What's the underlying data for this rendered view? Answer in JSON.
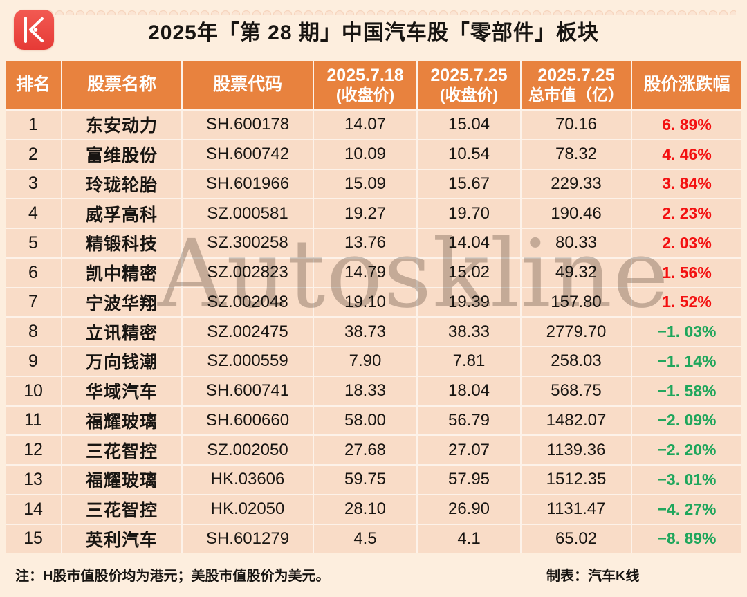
{
  "page": {
    "title": "2025年「第 28 期」中国汽车股「零部件」板块",
    "watermark": "Autoskline"
  },
  "colors": {
    "page_bg": "#fdeede",
    "header_bg": "#e8823e",
    "row_bg": "#f9dcc7",
    "grid_line": "#fdf2e9",
    "up_red": "#f31111",
    "down_green": "#1fa65c",
    "logo_red": "#ee4540"
  },
  "logo": {
    "name": "k-line-logo"
  },
  "table": {
    "columns": [
      {
        "label": "排名"
      },
      {
        "label": "股票名称"
      },
      {
        "label": "股票代码"
      },
      {
        "line1": "2025.7.18",
        "line2": "(收盘价)"
      },
      {
        "line1": "2025.7.25",
        "line2": "(收盘价)"
      },
      {
        "line1": "2025.7.25",
        "line2": "总市值（亿）"
      },
      {
        "label": "股价涨跌幅"
      }
    ],
    "rows": [
      {
        "rank": "1",
        "name": "东安动力",
        "code": "SH.600178",
        "close_0718": "14.07",
        "close_0725": "15.04",
        "market_cap": "70.16",
        "change": "6. 89%",
        "direction": "up"
      },
      {
        "rank": "2",
        "name": "富维股份",
        "code": "SH.600742",
        "close_0718": "10.09",
        "close_0725": "10.54",
        "market_cap": "78.32",
        "change": "4. 46%",
        "direction": "up"
      },
      {
        "rank": "3",
        "name": "玲珑轮胎",
        "code": "SH.601966",
        "close_0718": "15.09",
        "close_0725": "15.67",
        "market_cap": "229.33",
        "change": "3. 84%",
        "direction": "up"
      },
      {
        "rank": "4",
        "name": "威孚高科",
        "code": "SZ.000581",
        "close_0718": "19.27",
        "close_0725": "19.70",
        "market_cap": "190.46",
        "change": "2. 23%",
        "direction": "up"
      },
      {
        "rank": "5",
        "name": "精锻科技",
        "code": "SZ.300258",
        "close_0718": "13.76",
        "close_0725": "14.04",
        "market_cap": "80.33",
        "change": "2. 03%",
        "direction": "up"
      },
      {
        "rank": "6",
        "name": "凯中精密",
        "code": "SZ.002823",
        "close_0718": "14.79",
        "close_0725": "15.02",
        "market_cap": "49.32",
        "change": "1. 56%",
        "direction": "up"
      },
      {
        "rank": "7",
        "name": "宁波华翔",
        "code": "SZ.002048",
        "close_0718": "19.10",
        "close_0725": "19.39",
        "market_cap": "157.80",
        "change": "1. 52%",
        "direction": "up"
      },
      {
        "rank": "8",
        "name": "立讯精密",
        "code": "SZ.002475",
        "close_0718": "38.73",
        "close_0725": "38.33",
        "market_cap": "2779.70",
        "change": "−1. 03%",
        "direction": "down"
      },
      {
        "rank": "9",
        "name": "万向钱潮",
        "code": "SZ.000559",
        "close_0718": "7.90",
        "close_0725": "7.81",
        "market_cap": "258.03",
        "change": "−1. 14%",
        "direction": "down"
      },
      {
        "rank": "10",
        "name": "华域汽车",
        "code": "SH.600741",
        "close_0718": "18.33",
        "close_0725": "18.04",
        "market_cap": "568.75",
        "change": "−1. 58%",
        "direction": "down"
      },
      {
        "rank": "11",
        "name": "福耀玻璃",
        "code": "SH.600660",
        "close_0718": "58.00",
        "close_0725": "56.79",
        "market_cap": "1482.07",
        "change": "−2. 09%",
        "direction": "down"
      },
      {
        "rank": "12",
        "name": "三花智控",
        "code": "SZ.002050",
        "close_0718": "27.68",
        "close_0725": "27.07",
        "market_cap": "1139.36",
        "change": "−2. 20%",
        "direction": "down"
      },
      {
        "rank": "13",
        "name": "福耀玻璃",
        "code": "HK.03606",
        "close_0718": "59.75",
        "close_0725": "57.95",
        "market_cap": "1512.35",
        "change": "−3. 01%",
        "direction": "down"
      },
      {
        "rank": "14",
        "name": "三花智控",
        "code": "HK.02050",
        "close_0718": "28.10",
        "close_0725": "26.90",
        "market_cap": "1131.47",
        "change": "−4. 27%",
        "direction": "down"
      },
      {
        "rank": "15",
        "name": "英利汽车",
        "code": "SH.601279",
        "close_0718": "4.5",
        "close_0725": "4.1",
        "market_cap": "65.02",
        "change": "−8. 89%",
        "direction": "down"
      }
    ]
  },
  "footer": {
    "note": "注：H股市值股价均为港元；美股市值股价为美元。",
    "credit": "制表：汽车K线"
  },
  "chart_data": {
    "type": "table",
    "title": "2025年「第 28 期」中国汽车股「零部件」板块",
    "columns": [
      "排名",
      "股票名称",
      "股票代码",
      "2025.7.18 (收盘价)",
      "2025.7.25 (收盘价)",
      "2025.7.25 总市值（亿）",
      "股价涨跌幅"
    ],
    "rows": [
      [
        1,
        "东安动力",
        "SH.600178",
        14.07,
        15.04,
        70.16,
        6.89
      ],
      [
        2,
        "富维股份",
        "SH.600742",
        10.09,
        10.54,
        78.32,
        4.46
      ],
      [
        3,
        "玲珑轮胎",
        "SH.601966",
        15.09,
        15.67,
        229.33,
        3.84
      ],
      [
        4,
        "威孚高科",
        "SZ.000581",
        19.27,
        19.7,
        190.46,
        2.23
      ],
      [
        5,
        "精锻科技",
        "SZ.300258",
        13.76,
        14.04,
        80.33,
        2.03
      ],
      [
        6,
        "凯中精密",
        "SZ.002823",
        14.79,
        15.02,
        49.32,
        1.56
      ],
      [
        7,
        "宁波华翔",
        "SZ.002048",
        19.1,
        19.39,
        157.8,
        1.52
      ],
      [
        8,
        "立讯精密",
        "SZ.002475",
        38.73,
        38.33,
        2779.7,
        -1.03
      ],
      [
        9,
        "万向钱潮",
        "SZ.000559",
        7.9,
        7.81,
        258.03,
        -1.14
      ],
      [
        10,
        "华域汽车",
        "SH.600741",
        18.33,
        18.04,
        568.75,
        -1.58
      ],
      [
        11,
        "福耀玻璃",
        "SH.600660",
        58.0,
        56.79,
        1482.07,
        -2.09
      ],
      [
        12,
        "三花智控",
        "SZ.002050",
        27.68,
        27.07,
        1139.36,
        -2.2
      ],
      [
        13,
        "福耀玻璃",
        "HK.03606",
        59.75,
        57.95,
        1512.35,
        -3.01
      ],
      [
        14,
        "三花智控",
        "HK.02050",
        28.1,
        26.9,
        1131.47,
        -4.27
      ],
      [
        15,
        "英利汽车",
        "SH.601279",
        4.5,
        4.1,
        65.02,
        -8.89
      ]
    ],
    "notes": "涨跌幅正值为红色，负值为绿色；水印 Autoskline"
  }
}
